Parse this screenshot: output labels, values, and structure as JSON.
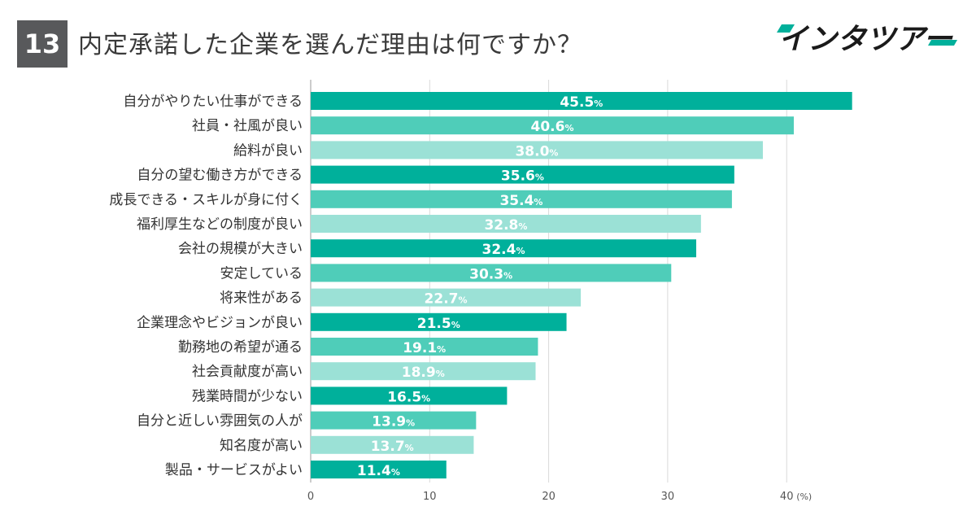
{
  "header": {
    "number": "13",
    "title": "内定承諾した企業を選んだ理由は何ですか？",
    "logo_text": "インタツアー"
  },
  "chart_data": {
    "type": "bar",
    "orientation": "horizontal",
    "title": "内定承諾した企業を選んだ理由は何ですか？",
    "categories": [
      "自分がやりたい仕事ができる",
      "社員・社風が良い",
      "給料が良い",
      "自分の望む働き方ができる",
      "成長できる・スキルが身に付く",
      "福利厚生などの制度が良い",
      "会社の規模が大きい",
      "安定している",
      "将来性がある",
      "企業理念やビジョンが良い",
      "勤務地の希望が通る",
      "社会貢献度が高い",
      "残業時間が少ない",
      "自分と近しい雰囲気の人が",
      "知名度が高い",
      "製品・サービスがよい"
    ],
    "values": [
      45.5,
      40.6,
      38.0,
      35.6,
      35.4,
      32.8,
      32.4,
      30.3,
      22.7,
      21.5,
      19.1,
      18.9,
      16.5,
      13.9,
      13.7,
      11.4
    ],
    "value_labels": [
      "45.5",
      "40.6",
      "38.0",
      "35.6",
      "35.4",
      "32.8",
      "32.4",
      "30.3",
      "22.7",
      "21.5",
      "19.1",
      "18.9",
      "16.5",
      "13.9",
      "13.7",
      "11.4"
    ],
    "value_suffix": "%",
    "xlim": [
      0,
      50
    ],
    "xticks": [
      0,
      10,
      20,
      30,
      40
    ],
    "xunit": "(%)",
    "grid": true,
    "colors": [
      "#00b09b",
      "#4fcdb9",
      "#9be1d6"
    ]
  }
}
